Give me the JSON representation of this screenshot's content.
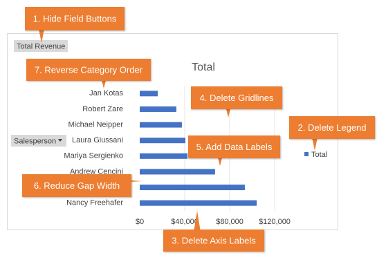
{
  "chart_data": {
    "type": "bar",
    "orientation": "horizontal",
    "title": "Total",
    "categories": [
      "Jan Kotas",
      "Robert Zare",
      "Michael Neipper",
      "Laura Giussani",
      "Mariya Sergienko",
      "Andrew Cencini",
      null,
      "Nancy Freehafer"
    ],
    "series": [
      {
        "name": "Total",
        "color": "#4472C4",
        "values": [
          16000,
          32600,
          37500,
          40600,
          42500,
          67000,
          93500,
          104000
        ]
      }
    ],
    "xlim": [
      0,
      140000
    ],
    "xticks": [
      {
        "value": 0,
        "label": "$0"
      },
      {
        "value": 40000,
        "label": "$40,000"
      },
      {
        "value": 80000,
        "label": "$80,000"
      },
      {
        "value": 120000,
        "label": "$120,000"
      }
    ],
    "grid": true,
    "legend": "right",
    "field_buttons": [
      "Total Revenue",
      "Salesperson"
    ],
    "annotations": [
      "1. Hide Field Buttons",
      "7. Reverse Category Order",
      "4. Delete Gridlines",
      "2. Delete Legend",
      "5. Add Data Labels",
      "6. Reduce Gap Width",
      "3. Delete Axis Labels"
    ]
  }
}
